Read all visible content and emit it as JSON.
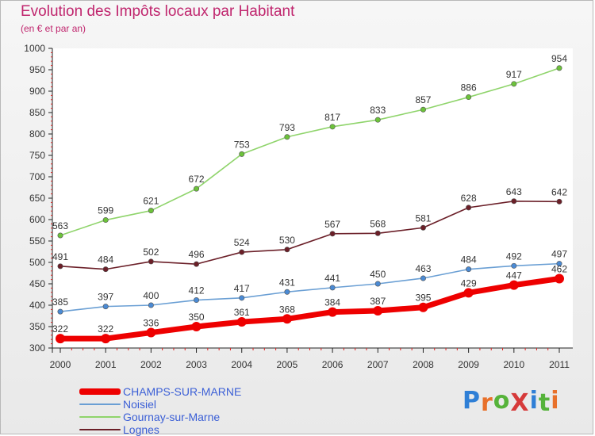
{
  "title": "Evolution des Impôts locaux par Habitant",
  "subtitle": "(en € et par an)",
  "logo": {
    "text": "ProXiti",
    "colors": [
      "#2f7fd6",
      "#e8702a",
      "#56b33a",
      "#d63a3a",
      "#2f7fd6",
      "#56b33a",
      "#e8702a"
    ]
  },
  "chart_data": {
    "type": "line",
    "x": [
      2000,
      2001,
      2002,
      2003,
      2004,
      2005,
      2006,
      2007,
      2008,
      2009,
      2010,
      2011
    ],
    "ylim": [
      300,
      1000
    ],
    "yticks": [
      300,
      350,
      400,
      450,
      500,
      550,
      600,
      650,
      700,
      750,
      800,
      850,
      900,
      950,
      1000
    ],
    "series": [
      {
        "name": "Gournay-sur-Marne",
        "color": "#8fd46b",
        "point_color": "#6cc23a",
        "width": 1.6,
        "values": [
          563,
          599,
          621,
          672,
          753,
          793,
          817,
          833,
          857,
          886,
          917,
          954
        ]
      },
      {
        "name": "Lognes",
        "color": "#6b1f28",
        "point_color": "#6b1f28",
        "width": 1.6,
        "values": [
          491,
          484,
          502,
          496,
          524,
          530,
          567,
          568,
          581,
          628,
          643,
          642
        ]
      },
      {
        "name": "Noisiel",
        "color": "#6a9fd4",
        "point_color": "#4a8ad4",
        "width": 1.6,
        "values": [
          385,
          397,
          400,
          412,
          417,
          431,
          441,
          450,
          463,
          484,
          492,
          497
        ]
      },
      {
        "name": "CHAMPS-SUR-MARNE",
        "color": "#ee0000",
        "point_color": "#ee0000",
        "width": 7,
        "values": [
          322,
          322,
          336,
          350,
          361,
          368,
          384,
          387,
          395,
          429,
          447,
          462
        ]
      }
    ],
    "grid": false
  },
  "legend": [
    {
      "label": "CHAMPS-SUR-MARNE",
      "color": "#ee0000",
      "thickness": 8
    },
    {
      "label": "Noisiel",
      "color": "#6a9fd4",
      "thickness": 2
    },
    {
      "label": "Gournay-sur-Marne",
      "color": "#8fd46b",
      "thickness": 2
    },
    {
      "label": "Lognes",
      "color": "#6b1f28",
      "thickness": 2
    }
  ]
}
